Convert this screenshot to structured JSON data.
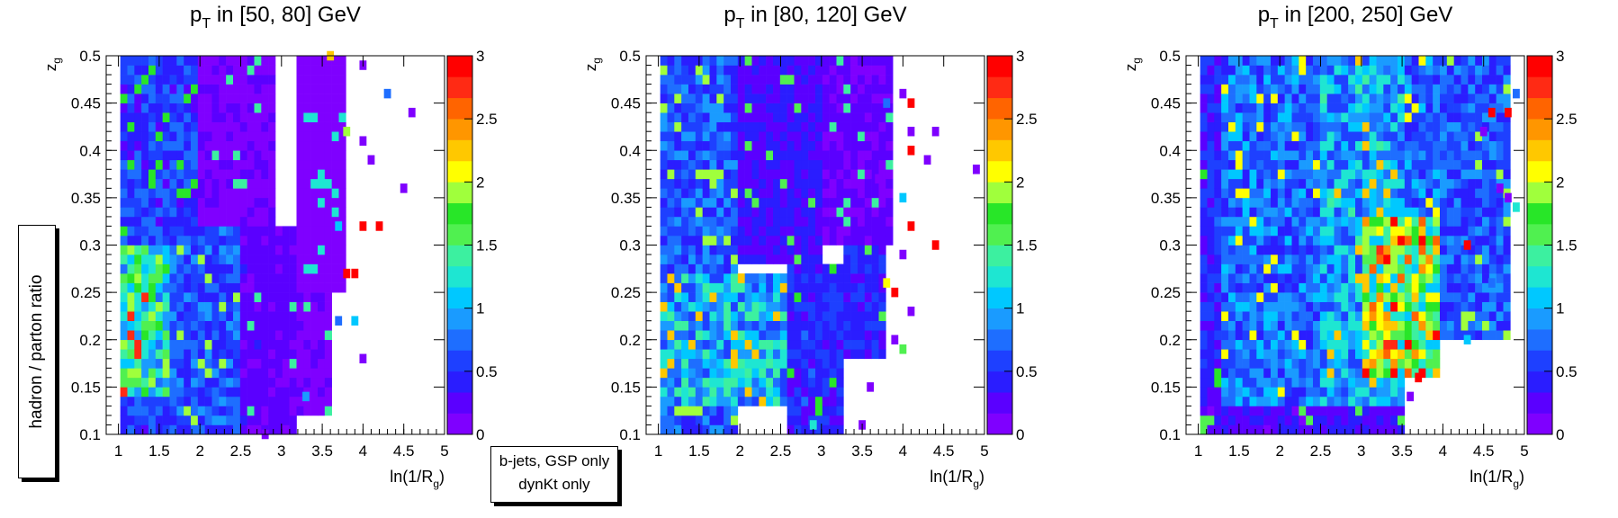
{
  "figure": {
    "ylabel": "hadron / parton ratio",
    "legend_lines": [
      "b-jets, GSP only",
      "dynKt only"
    ]
  },
  "palette": [
    "#7f00ff",
    "#5a00ff",
    "#2a1dff",
    "#1e40ff",
    "#1e6eff",
    "#1a9bff",
    "#00c8ff",
    "#1ee6d2",
    "#3cf0a0",
    "#50f050",
    "#28e628",
    "#a0ff3c",
    "#ffff00",
    "#ffc800",
    "#ff9600",
    "#ff6400",
    "#ff2a14",
    "#ff0000"
  ],
  "chart_data": [
    {
      "type": "heatmap",
      "title_prefix": "p",
      "title_sub": "T",
      "title_suffix": " in [50, 80] GeV",
      "xlabel_prefix": "ln(1/R",
      "xlabel_sub": "g",
      "xlabel_suffix": ")",
      "ylabel_prefix": "z",
      "ylabel_sub": "g",
      "xlim": [
        0.85,
        5.0
      ],
      "ylim": [
        0.1,
        0.5
      ],
      "xticks": [
        1,
        1.5,
        2,
        2.5,
        3,
        3.5,
        4,
        4.5,
        5
      ],
      "xtick_labels": [
        "1",
        "1.5",
        "2",
        "2.5",
        "3",
        "3.5",
        "4",
        "4.5",
        "5"
      ],
      "yticks": [
        0.1,
        0.15,
        0.2,
        0.25,
        0.3,
        0.35,
        0.4,
        0.45,
        0.5
      ],
      "ytick_labels": [
        "0.1",
        "0.15",
        "0.2",
        "0.25",
        "0.3",
        "0.35",
        "0.4",
        "0.45",
        "0.5"
      ],
      "zlim": [
        0,
        3
      ],
      "zticks": [
        0,
        0.5,
        1,
        1.5,
        2,
        2.5,
        3
      ],
      "ztick_labels": [
        "0",
        "0.5",
        "1",
        "1.5",
        "2",
        "2.5",
        "3"
      ],
      "regions": [
        {
          "x": [
            1.0,
            2.0
          ],
          "y": [
            0.1,
            0.5
          ],
          "v": 0.6
        },
        {
          "x": [
            1.0,
            1.6
          ],
          "y": [
            0.14,
            0.3
          ],
          "v": 1.5
        },
        {
          "x": [
            1.6,
            2.5
          ],
          "y": [
            0.1,
            0.32
          ],
          "v": 0.7
        },
        {
          "x": [
            2.0,
            2.9
          ],
          "y": [
            0.32,
            0.5
          ],
          "v": 0.15
        },
        {
          "x": [
            2.5,
            3.2
          ],
          "y": [
            0.1,
            0.32
          ],
          "v": 0.25
        },
        {
          "x": [
            3.2,
            3.75
          ],
          "y": [
            0.25,
            0.5
          ],
          "v": 0.1
        },
        {
          "x": [
            3.2,
            3.6
          ],
          "y": [
            0.12,
            0.25
          ],
          "v": 0.15
        }
      ],
      "sparse_points": [
        [
          3.6,
          0.5,
          2.3
        ],
        [
          4.0,
          0.49,
          0.1
        ],
        [
          4.3,
          0.46,
          0.8
        ],
        [
          4.6,
          0.44,
          0.1
        ],
        [
          3.8,
          0.42,
          1.9
        ],
        [
          4.0,
          0.41,
          0.1
        ],
        [
          4.1,
          0.39,
          0.1
        ],
        [
          4.5,
          0.36,
          0.1
        ],
        [
          3.7,
          0.32,
          1.0
        ],
        [
          4.0,
          0.32,
          3.0
        ],
        [
          4.2,
          0.32,
          2.9
        ],
        [
          3.8,
          0.27,
          3.0
        ],
        [
          3.9,
          0.27,
          2.9
        ],
        [
          3.7,
          0.22,
          0.8
        ],
        [
          3.9,
          0.22,
          1.0
        ],
        [
          4.0,
          0.18,
          0.1
        ],
        [
          3.3,
          0.14,
          0.9
        ],
        [
          2.8,
          0.1,
          0.1
        ]
      ]
    },
    {
      "type": "heatmap",
      "title_prefix": "p",
      "title_sub": "T",
      "title_suffix": " in [80, 120] GeV",
      "xlabel_prefix": "ln(1/R",
      "xlabel_sub": "g",
      "xlabel_suffix": ")",
      "ylabel_prefix": "z",
      "ylabel_sub": "g",
      "xlim": [
        0.85,
        5.0
      ],
      "ylim": [
        0.1,
        0.5
      ],
      "xticks": [
        1,
        1.5,
        2,
        2.5,
        3,
        3.5,
        4,
        4.5,
        5
      ],
      "xtick_labels": [
        "1",
        "1.5",
        "2",
        "2.5",
        "3",
        "3.5",
        "4",
        "4.5",
        "5"
      ],
      "yticks": [
        0.1,
        0.15,
        0.2,
        0.25,
        0.3,
        0.35,
        0.4,
        0.45,
        0.5
      ],
      "ytick_labels": [
        "0.1",
        "0.15",
        "0.2",
        "0.25",
        "0.3",
        "0.35",
        "0.4",
        "0.45",
        "0.5"
      ],
      "zlim": [
        0,
        3
      ],
      "zticks": [
        0,
        0.5,
        1,
        1.5,
        2,
        2.5,
        3
      ],
      "ztick_labels": [
        "0",
        "0.5",
        "1",
        "1.5",
        "2",
        "2.5",
        "3"
      ],
      "regions": [
        {
          "x": [
            1.0,
            2.0
          ],
          "y": [
            0.1,
            0.5
          ],
          "v": 0.7
        },
        {
          "x": [
            1.0,
            2.6
          ],
          "y": [
            0.13,
            0.27
          ],
          "v": 1.1
        },
        {
          "x": [
            2.0,
            3.0
          ],
          "y": [
            0.28,
            0.5
          ],
          "v": 0.35
        },
        {
          "x": [
            2.6,
            3.3
          ],
          "y": [
            0.1,
            0.28
          ],
          "v": 0.5
        },
        {
          "x": [
            3.0,
            3.9
          ],
          "y": [
            0.3,
            0.5
          ],
          "v": 0.2
        },
        {
          "x": [
            3.3,
            3.8
          ],
          "y": [
            0.18,
            0.3
          ],
          "v": 0.45
        }
      ],
      "sparse_points": [
        [
          4.0,
          0.46,
          0.1
        ],
        [
          4.1,
          0.45,
          2.9
        ],
        [
          3.8,
          0.45,
          0.8
        ],
        [
          4.1,
          0.42,
          0.1
        ],
        [
          4.4,
          0.42,
          0.1
        ],
        [
          4.1,
          0.4,
          3.0
        ],
        [
          4.3,
          0.39,
          0.1
        ],
        [
          4.9,
          0.38,
          0.1
        ],
        [
          3.7,
          0.37,
          0.1
        ],
        [
          4.0,
          0.35,
          1.0
        ],
        [
          4.1,
          0.32,
          2.9
        ],
        [
          4.4,
          0.3,
          3.0
        ],
        [
          4.0,
          0.29,
          0.1
        ],
        [
          3.8,
          0.26,
          2.1
        ],
        [
          3.9,
          0.25,
          2.9
        ],
        [
          4.1,
          0.23,
          0.1
        ],
        [
          3.9,
          0.2,
          0.1
        ],
        [
          4.0,
          0.19,
          1.6
        ],
        [
          3.6,
          0.15,
          0.1
        ],
        [
          3.5,
          0.11,
          0.1
        ],
        [
          2.9,
          0.11,
          1.2
        ]
      ]
    },
    {
      "type": "heatmap",
      "title_prefix": "p",
      "title_sub": "T",
      "title_suffix": " in [200, 250] GeV",
      "xlabel_prefix": "ln(1/R",
      "xlabel_sub": "g",
      "xlabel_suffix": ")",
      "ylabel_prefix": "z",
      "ylabel_sub": "g",
      "xlim": [
        0.85,
        5.0
      ],
      "ylim": [
        0.1,
        0.5
      ],
      "xticks": [
        1,
        1.5,
        2,
        2.5,
        3,
        3.5,
        4,
        4.5,
        5
      ],
      "xtick_labels": [
        "1",
        "1.5",
        "2",
        "2.5",
        "3",
        "3.5",
        "4",
        "4.5",
        "5"
      ],
      "yticks": [
        0.1,
        0.15,
        0.2,
        0.25,
        0.3,
        0.35,
        0.4,
        0.45,
        0.5
      ],
      "ytick_labels": [
        "0.1",
        "0.15",
        "0.2",
        "0.25",
        "0.3",
        "0.35",
        "0.4",
        "0.45",
        "0.5"
      ],
      "zlim": [
        0,
        3
      ],
      "zticks": [
        0,
        0.5,
        1,
        1.5,
        2,
        2.5,
        3
      ],
      "ztick_labels": [
        "0",
        "0.5",
        "1",
        "1.5",
        "2",
        "2.5",
        "3"
      ],
      "regions": [
        {
          "x": [
            1.0,
            2.5
          ],
          "y": [
            0.1,
            0.5
          ],
          "v": 0.8
        },
        {
          "x": [
            1.0,
            1.3
          ],
          "y": [
            0.1,
            0.5
          ],
          "v": 0.5
        },
        {
          "x": [
            2.5,
            3.5
          ],
          "y": [
            0.13,
            0.5
          ],
          "v": 1.0
        },
        {
          "x": [
            3.0,
            4.0
          ],
          "y": [
            0.16,
            0.33
          ],
          "v": 2.0
        },
        {
          "x": [
            3.5,
            4.4
          ],
          "y": [
            0.33,
            0.5
          ],
          "v": 0.8
        },
        {
          "x": [
            4.0,
            4.8
          ],
          "y": [
            0.2,
            0.5
          ],
          "v": 0.7
        },
        {
          "x": [
            1.0,
            3.5
          ],
          "y": [
            0.1,
            0.13
          ],
          "v": 0.3
        }
      ],
      "sparse_points": [
        [
          4.9,
          0.46,
          0.8
        ],
        [
          4.8,
          0.44,
          2.9
        ],
        [
          4.6,
          0.44,
          3.0
        ],
        [
          4.5,
          0.42,
          0.1
        ],
        [
          4.7,
          0.36,
          0.1
        ],
        [
          4.8,
          0.35,
          0.1
        ],
        [
          4.9,
          0.34,
          1.3
        ],
        [
          4.3,
          0.3,
          3.0
        ],
        [
          4.6,
          0.26,
          0.8
        ],
        [
          4.3,
          0.2,
          1.0
        ],
        [
          3.7,
          0.16,
          3.0
        ],
        [
          3.6,
          0.14,
          0.1
        ]
      ]
    }
  ]
}
